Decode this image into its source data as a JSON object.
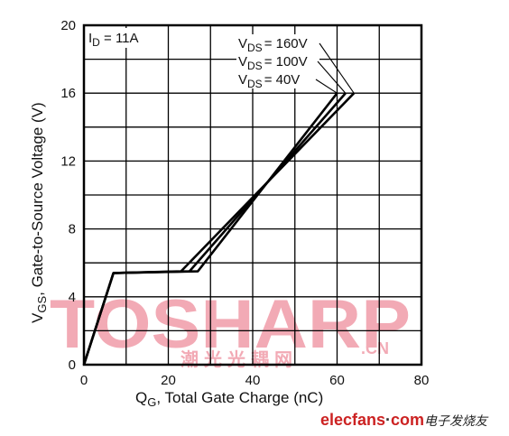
{
  "chart_data": {
    "type": "line",
    "title": "",
    "xlabel_main": "Q",
    "xlabel_sub": "G",
    "xlabel_rest": ", Total Gate Charge (nC)",
    "ylabel_main": "V",
    "ylabel_sub": "GS",
    "ylabel_rest": ", Gate-to-Source Voltage (V)",
    "xlim": [
      0,
      80
    ],
    "ylim": [
      0,
      20
    ],
    "xticks": [
      "0",
      "20",
      "40",
      "60",
      "80"
    ],
    "yticks": [
      "0",
      "4",
      "8",
      "12",
      "16",
      "20"
    ],
    "grid": true,
    "condition": {
      "main": "I",
      "sub": "D",
      "rest": " = 11A"
    },
    "series": [
      {
        "name_main": "V",
        "name_sub": "DS",
        "name_rest": "= 160V",
        "x": [
          0,
          7,
          23,
          64
        ],
        "y": [
          0,
          5.4,
          5.5,
          16
        ]
      },
      {
        "name_main": "V",
        "name_sub": "DS",
        "name_rest": "= 100V",
        "x": [
          0,
          7,
          25,
          62
        ],
        "y": [
          0,
          5.4,
          5.5,
          16
        ]
      },
      {
        "name_main": "V",
        "name_sub": "DS",
        "name_rest": "= 40V",
        "x": [
          0,
          7,
          27,
          60
        ],
        "y": [
          0,
          5.4,
          5.5,
          16
        ]
      }
    ],
    "annotation_anchor_y": 16
  },
  "watermark": {
    "text": "TOSHARP",
    "suffix": ".CN",
    "cn_text": "潮光光耦网",
    "color": "#e9667a"
  },
  "footer": {
    "site": "elecfans",
    "dot": "·",
    "tld": "com",
    "cn_text": "电子发烧友",
    "color": "#cc2222"
  }
}
